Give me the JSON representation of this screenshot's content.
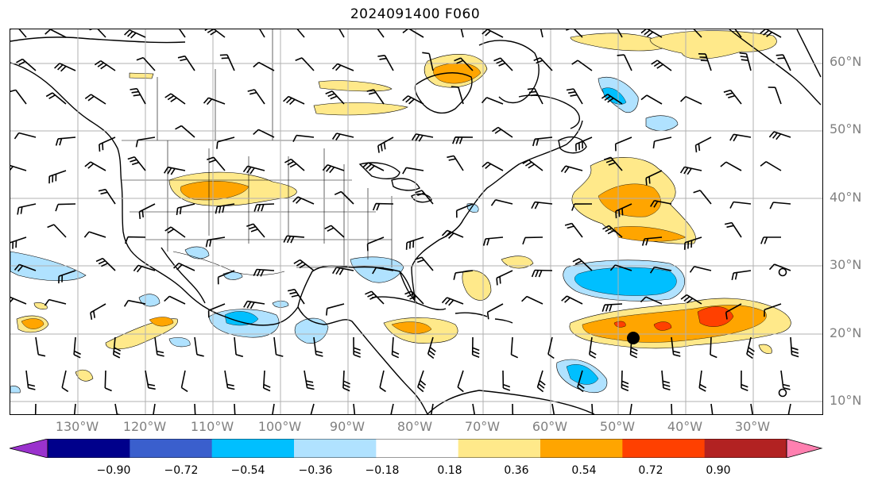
{
  "title": "2024091400 F060",
  "lat_labels": [
    "60°N",
    "50°N",
    "40°N",
    "30°N",
    "20°N",
    "10°N"
  ],
  "lon_labels": [
    "130°W",
    "120°W",
    "110°W",
    "100°W",
    "90°W",
    "80°W",
    "70°W",
    "60°W",
    "50°W",
    "40°W",
    "30°W"
  ],
  "colorbar": {
    "ticks": [
      "−0.90",
      "−0.72",
      "−0.54",
      "−0.36",
      "−0.18",
      "0.18",
      "0.36",
      "0.54",
      "0.72",
      "0.90"
    ],
    "colors": [
      "#9a32cd",
      "#00008b",
      "#3a5fcd",
      "#00bfff",
      "#b0e2ff",
      "#ffffff",
      "#ffe98a",
      "#ffa500",
      "#ff4000",
      "#b22222",
      "#ff80b0"
    ],
    "min_arrow_color": "#9a32cd",
    "max_arrow_color": "#ff80b0"
  },
  "colors": {
    "grid": "#b0b0b0",
    "coast": "#000000",
    "label": "#808080",
    "storm_marker": "#000000"
  },
  "features": {
    "storm_marker": "filled-circle-near-19N-48W",
    "calm_wind_markers": 2
  }
}
